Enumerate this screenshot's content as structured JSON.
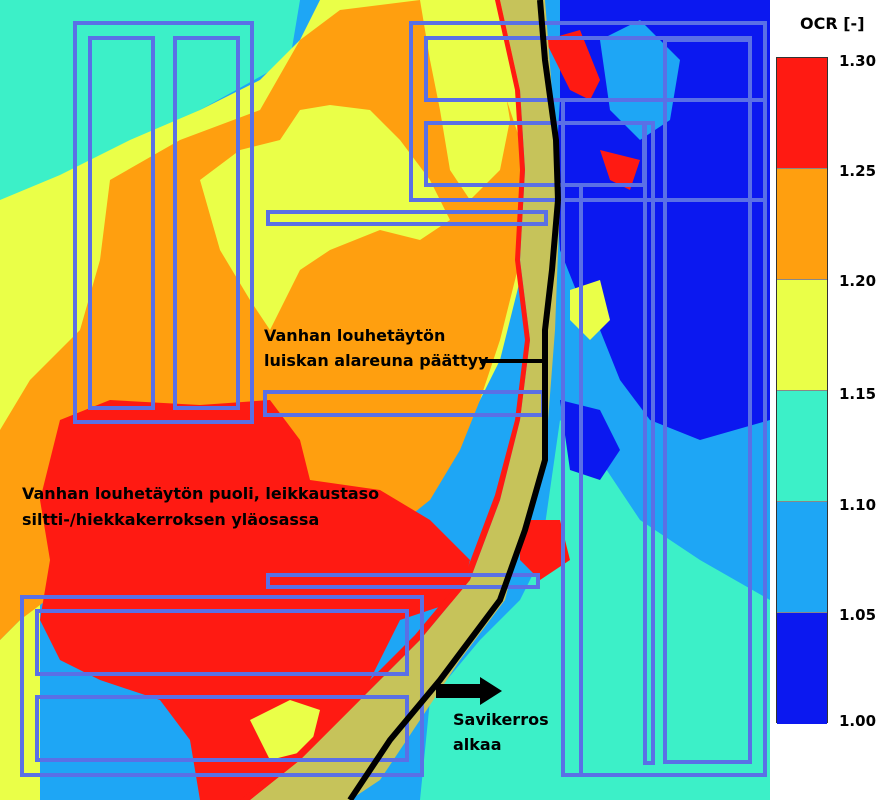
{
  "legend": {
    "title": "OCR [-]",
    "ticks": [
      "1.30",
      "1.25",
      "1.20",
      "1.15",
      "1.10",
      "1.05",
      "1.00"
    ],
    "band_colors": [
      "#ff1a12",
      "#ff9f0f",
      "#eaff48",
      "#3cf0c8",
      "#1ea6f5",
      "#0b18f0"
    ]
  },
  "annotations": {
    "slope_toe_line1": "Vanhan louhetäytön",
    "slope_toe_line2": "luiskan alareuna päättyy",
    "fill_side_line1": "Vanhan louhetäytön puoli, leikkaustaso",
    "fill_side_line2": "siltti-/hiekkakerroksen yläosassa",
    "clay_line1": "Savikerros",
    "clay_line2": "alkaa"
  },
  "colors": {
    "background_light_blue": "#1ea6f5",
    "fill_strip": "#c6c35a",
    "foundation_outline": "#5a70e6",
    "boundary_line": "#000000"
  }
}
